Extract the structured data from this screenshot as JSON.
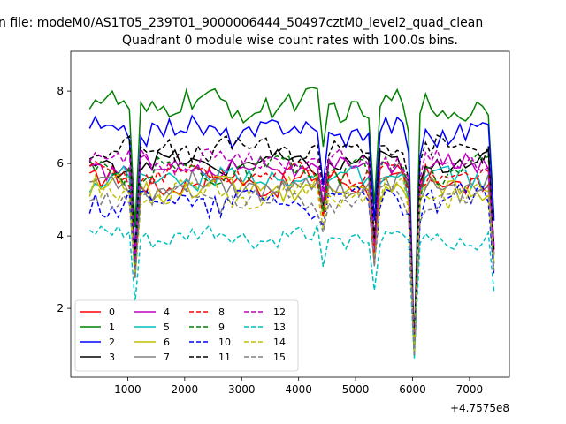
{
  "chart_data": {
    "type": "line",
    "suptitle": "n file: modeM0/AS1T05_239T01_9000006444_50497cztM0_level2_quad_clean",
    "title": "Quadrant 0 module wise count rates with 100.0s bins.",
    "xlabel": "",
    "ylabel": "",
    "x_offset_label": "+4.7575e8",
    "xlim": [
      0,
      7700
    ],
    "ylim": [
      0.1,
      9.1
    ],
    "x_ticks": [
      1000,
      2000,
      3000,
      4000,
      5000,
      6000,
      7000
    ],
    "x_tick_labels": [
      "1000",
      "2000",
      "3000",
      "4000",
      "5000",
      "6000",
      "7000"
    ],
    "y_ticks": [
      2,
      4,
      6,
      8
    ],
    "y_tick_labels": [
      "2",
      "4",
      "6",
      "8"
    ],
    "legend_position": "lower-left",
    "x": [
      330,
      430,
      530,
      630,
      730,
      830,
      930,
      1030,
      1130,
      1230,
      1330,
      1430,
      1530,
      1630,
      1730,
      1830,
      1930,
      2030,
      2130,
      2230,
      2330,
      2430,
      2530,
      2630,
      2730,
      2830,
      2930,
      3030,
      3130,
      3230,
      3330,
      3430,
      3530,
      3630,
      3730,
      3830,
      3930,
      4030,
      4130,
      4230,
      4330,
      4430,
      4530,
      4630,
      4730,
      4830,
      4930,
      5030,
      5130,
      5230,
      5330,
      5430,
      5530,
      5630,
      5730,
      5830,
      5930,
      6030,
      6130,
      6230,
      6330,
      6430,
      6530,
      6630,
      6730,
      6830,
      6930,
      7030,
      7130,
      7230,
      7330,
      7430
    ],
    "series": [
      {
        "name": "0",
        "color": "#ff0000",
        "dash": "solid",
        "base": 5.5,
        "amp": 0.3
      },
      {
        "name": "1",
        "color": "#008000",
        "dash": "solid",
        "base": 7.6,
        "amp": 0.35
      },
      {
        "name": "2",
        "color": "#0000ff",
        "dash": "solid",
        "base": 6.9,
        "amp": 0.3
      },
      {
        "name": "3",
        "color": "#000000",
        "dash": "solid",
        "base": 6.0,
        "amp": 0.25
      },
      {
        "name": "4",
        "color": "#bf00bf",
        "dash": "solid",
        "base": 5.9,
        "amp": 0.25
      },
      {
        "name": "5",
        "color": "#00bfbf",
        "dash": "solid",
        "base": 5.6,
        "amp": 0.25
      },
      {
        "name": "6",
        "color": "#bfbf00",
        "dash": "solid",
        "base": 5.3,
        "amp": 0.3
      },
      {
        "name": "7",
        "color": "#808080",
        "dash": "solid",
        "base": 5.4,
        "amp": 0.3
      },
      {
        "name": "8",
        "color": "#ff0000",
        "dash": "dashed",
        "base": 5.7,
        "amp": 0.25
      },
      {
        "name": "9",
        "color": "#008000",
        "dash": "dashed",
        "base": 5.8,
        "amp": 0.3
      },
      {
        "name": "10",
        "color": "#0000ff",
        "dash": "dashed",
        "base": 5.0,
        "amp": 0.35
      },
      {
        "name": "11",
        "color": "#000000",
        "dash": "dashed",
        "base": 6.4,
        "amp": 0.3
      },
      {
        "name": "12",
        "color": "#bf00bf",
        "dash": "dashed",
        "base": 6.1,
        "amp": 0.25
      },
      {
        "name": "13",
        "color": "#00bfbf",
        "dash": "dashed",
        "base": 3.95,
        "amp": 0.25
      },
      {
        "name": "14",
        "color": "#bfbf00",
        "dash": "dashed",
        "base": 5.2,
        "amp": 0.3
      },
      {
        "name": "15",
        "color": "#808080",
        "dash": "dashed",
        "base": 5.0,
        "amp": 0.3
      }
    ],
    "dips": [
      {
        "x_index": 8,
        "factor": 0.55
      },
      {
        "x_index": 41,
        "factor": 0.82
      },
      {
        "x_index": 50,
        "factor": 0.62
      },
      {
        "x_index": 57,
        "factor": 0.08
      },
      {
        "x_index": 71,
        "factor": 0.6
      }
    ]
  }
}
